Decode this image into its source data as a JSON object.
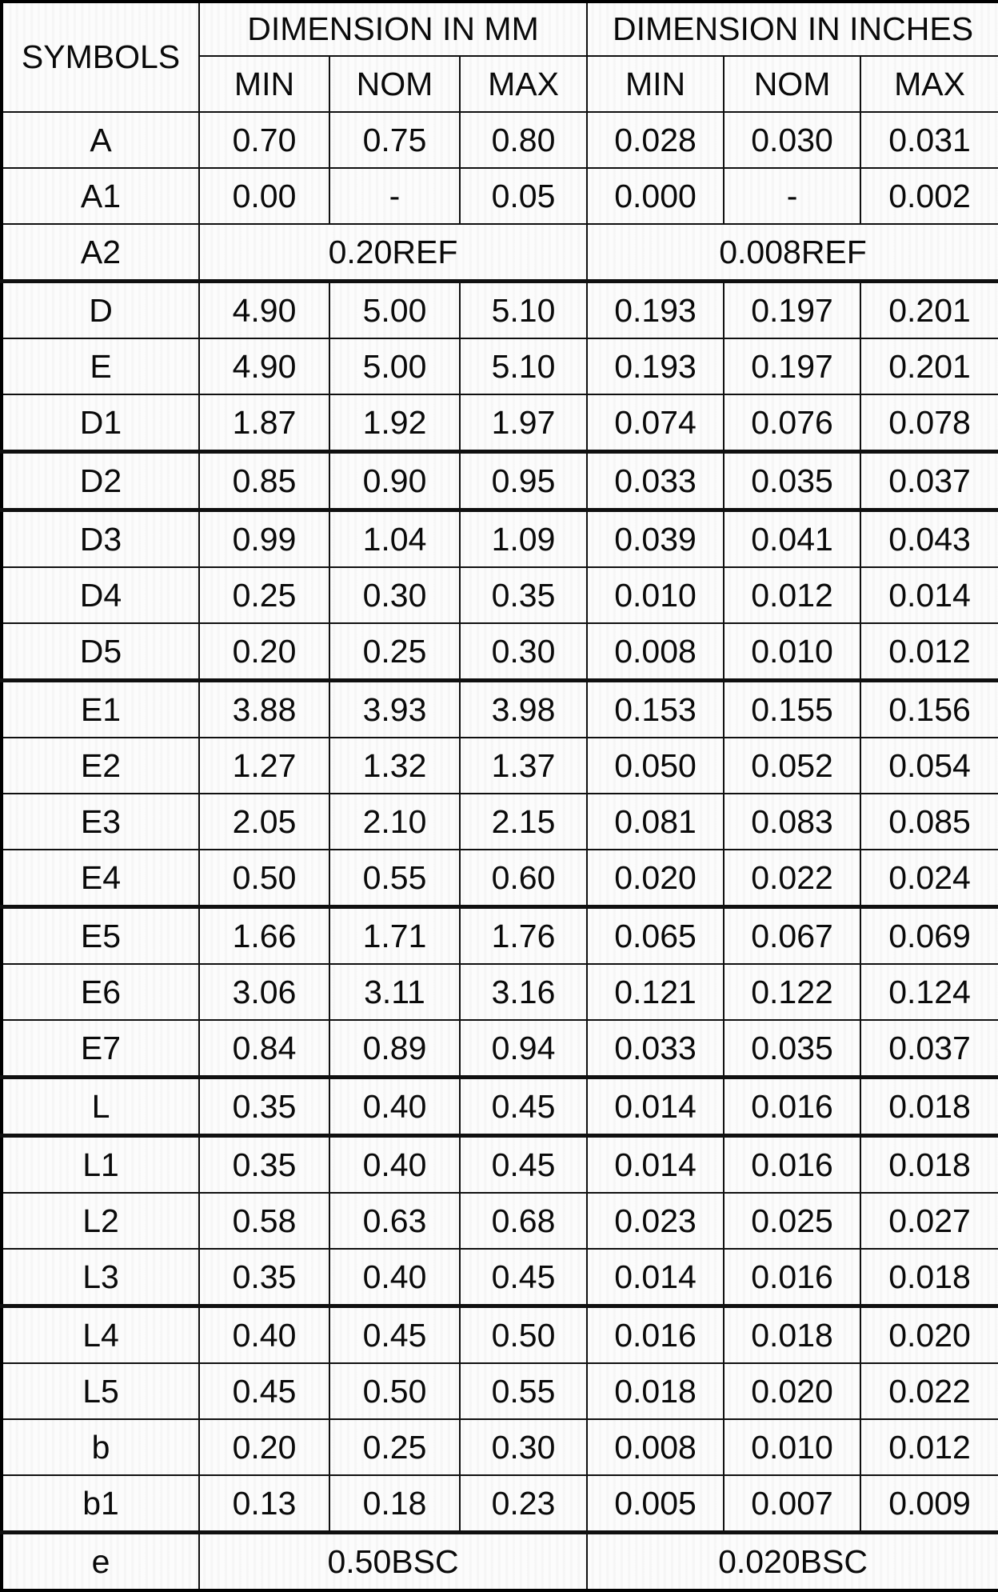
{
  "table": {
    "symbols_label": "SYMBOLS",
    "mm_label": "DIMENSION IN MM",
    "inches_label": "DIMENSION IN INCHES",
    "sub_headers": [
      "MIN",
      "NOM",
      "MAX"
    ],
    "rows": [
      {
        "symbol": "A",
        "merged": false,
        "mm": [
          "0.70",
          "0.75",
          "0.80"
        ],
        "inches": [
          "0.028",
          "0.030",
          "0.031"
        ],
        "thick_bottom": false
      },
      {
        "symbol": "A1",
        "merged": false,
        "mm": [
          "0.00",
          "-",
          "0.05"
        ],
        "inches": [
          "0.000",
          "-",
          "0.002"
        ],
        "thick_bottom": false
      },
      {
        "symbol": "A2",
        "merged": true,
        "mm": "0.20REF",
        "inches": "0.008REF",
        "thick_bottom": true
      },
      {
        "symbol": "D",
        "merged": false,
        "mm": [
          "4.90",
          "5.00",
          "5.10"
        ],
        "inches": [
          "0.193",
          "0.197",
          "0.201"
        ],
        "thick_bottom": false
      },
      {
        "symbol": "E",
        "merged": false,
        "mm": [
          "4.90",
          "5.00",
          "5.10"
        ],
        "inches": [
          "0.193",
          "0.197",
          "0.201"
        ],
        "thick_bottom": false
      },
      {
        "symbol": "D1",
        "merged": false,
        "mm": [
          "1.87",
          "1.92",
          "1.97"
        ],
        "inches": [
          "0.074",
          "0.076",
          "0.078"
        ],
        "thick_bottom": true
      },
      {
        "symbol": "D2",
        "merged": false,
        "mm": [
          "0.85",
          "0.90",
          "0.95"
        ],
        "inches": [
          "0.033",
          "0.035",
          "0.037"
        ],
        "thick_bottom": true
      },
      {
        "symbol": "D3",
        "merged": false,
        "mm": [
          "0.99",
          "1.04",
          "1.09"
        ],
        "inches": [
          "0.039",
          "0.041",
          "0.043"
        ],
        "thick_bottom": false
      },
      {
        "symbol": "D4",
        "merged": false,
        "mm": [
          "0.25",
          "0.30",
          "0.35"
        ],
        "inches": [
          "0.010",
          "0.012",
          "0.014"
        ],
        "thick_bottom": false
      },
      {
        "symbol": "D5",
        "merged": false,
        "mm": [
          "0.20",
          "0.25",
          "0.30"
        ],
        "inches": [
          "0.008",
          "0.010",
          "0.012"
        ],
        "thick_bottom": true
      },
      {
        "symbol": "E1",
        "merged": false,
        "mm": [
          "3.88",
          "3.93",
          "3.98"
        ],
        "inches": [
          "0.153",
          "0.155",
          "0.156"
        ],
        "thick_bottom": false
      },
      {
        "symbol": "E2",
        "merged": false,
        "mm": [
          "1.27",
          "1.32",
          "1.37"
        ],
        "inches": [
          "0.050",
          "0.052",
          "0.054"
        ],
        "thick_bottom": false
      },
      {
        "symbol": "E3",
        "merged": false,
        "mm": [
          "2.05",
          "2.10",
          "2.15"
        ],
        "inches": [
          "0.081",
          "0.083",
          "0.085"
        ],
        "thick_bottom": false
      },
      {
        "symbol": "E4",
        "merged": false,
        "mm": [
          "0.50",
          "0.55",
          "0.60"
        ],
        "inches": [
          "0.020",
          "0.022",
          "0.024"
        ],
        "thick_bottom": true
      },
      {
        "symbol": "E5",
        "merged": false,
        "mm": [
          "1.66",
          "1.71",
          "1.76"
        ],
        "inches": [
          "0.065",
          "0.067",
          "0.069"
        ],
        "thick_bottom": false
      },
      {
        "symbol": "E6",
        "merged": false,
        "mm": [
          "3.06",
          "3.11",
          "3.16"
        ],
        "inches": [
          "0.121",
          "0.122",
          "0.124"
        ],
        "thick_bottom": false
      },
      {
        "symbol": "E7",
        "merged": false,
        "mm": [
          "0.84",
          "0.89",
          "0.94"
        ],
        "inches": [
          "0.033",
          "0.035",
          "0.037"
        ],
        "thick_bottom": true
      },
      {
        "symbol": "L",
        "merged": false,
        "mm": [
          "0.35",
          "0.40",
          "0.45"
        ],
        "inches": [
          "0.014",
          "0.016",
          "0.018"
        ],
        "thick_bottom": true
      },
      {
        "symbol": "L1",
        "merged": false,
        "mm": [
          "0.35",
          "0.40",
          "0.45"
        ],
        "inches": [
          "0.014",
          "0.016",
          "0.018"
        ],
        "thick_bottom": false
      },
      {
        "symbol": "L2",
        "merged": false,
        "mm": [
          "0.58",
          "0.63",
          "0.68"
        ],
        "inches": [
          "0.023",
          "0.025",
          "0.027"
        ],
        "thick_bottom": false
      },
      {
        "symbol": "L3",
        "merged": false,
        "mm": [
          "0.35",
          "0.40",
          "0.45"
        ],
        "inches": [
          "0.014",
          "0.016",
          "0.018"
        ],
        "thick_bottom": true
      },
      {
        "symbol": "L4",
        "merged": false,
        "mm": [
          "0.40",
          "0.45",
          "0.50"
        ],
        "inches": [
          "0.016",
          "0.018",
          "0.020"
        ],
        "thick_bottom": false
      },
      {
        "symbol": "L5",
        "merged": false,
        "mm": [
          "0.45",
          "0.50",
          "0.55"
        ],
        "inches": [
          "0.018",
          "0.020",
          "0.022"
        ],
        "thick_bottom": false
      },
      {
        "symbol": "b",
        "merged": false,
        "mm": [
          "0.20",
          "0.25",
          "0.30"
        ],
        "inches": [
          "0.008",
          "0.010",
          "0.012"
        ],
        "thick_bottom": false
      },
      {
        "symbol": "b1",
        "merged": false,
        "mm": [
          "0.13",
          "0.18",
          "0.23"
        ],
        "inches": [
          "0.005",
          "0.007",
          "0.009"
        ],
        "thick_bottom": true
      },
      {
        "symbol": "e",
        "merged": true,
        "mm": "0.50BSC",
        "inches": "0.020BSC",
        "thick_bottom": false
      }
    ]
  },
  "colors": {
    "border": "#000000",
    "background": "#fcfcfc",
    "text": "#0a0a0a"
  }
}
